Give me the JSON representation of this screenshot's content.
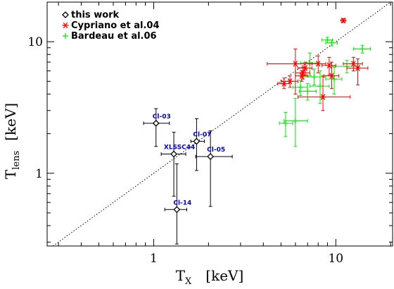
{
  "chart_data": {
    "type": "scatter",
    "title": "",
    "xlabel": "T",
    "xlabel_sub": "X",
    "xlabel_unit": "[keV]",
    "ylabel": "T",
    "ylabel_sub": "lens",
    "ylabel_unit": "[keV]",
    "x_scale": "log",
    "y_scale": "log",
    "xlim": [
      0.26,
      20.5
    ],
    "ylim": [
      0.28,
      20.0
    ],
    "x_ticks": [
      {
        "value": 1,
        "label": "1"
      },
      {
        "value": 10,
        "label": "10"
      }
    ],
    "y_ticks": [
      {
        "value": 1,
        "label": "1"
      },
      {
        "value": 10,
        "label": "10"
      }
    ],
    "grid": false,
    "legend_position": "top-left",
    "reference_line": {
      "type": "one-to-one",
      "style": "dotted"
    },
    "series": [
      {
        "name": "this work",
        "marker": "diamond",
        "color": "#000000",
        "points": [
          {
            "label": "Cl-03",
            "x": 1.03,
            "y": 2.4,
            "xerr": [
              0.88,
              1.22
            ],
            "yerr": [
              1.6,
              3.1
            ]
          },
          {
            "label": "XLSSC44",
            "x": 1.29,
            "y": 1.4,
            "xerr": [
              1.1,
              1.5
            ],
            "yerr": [
              0.67,
              2.05
            ]
          },
          {
            "label": "Cl-07",
            "x": 1.72,
            "y": 1.75,
            "xerr": [
              1.6,
              1.9
            ],
            "yerr": [
              1.05,
              2.6
            ]
          },
          {
            "label": "Cl-05",
            "x": 2.05,
            "y": 1.34,
            "xerr": [
              1.7,
              2.7
            ],
            "yerr": [
              0.56,
              2.1
            ]
          },
          {
            "label": "Cl-14",
            "x": 1.34,
            "y": 0.53,
            "xerr": [
              1.15,
              1.52
            ],
            "yerr": [
              0.29,
              1.18
            ]
          }
        ]
      },
      {
        "name": "Cypriano et al.04",
        "marker": "asterisk",
        "color": "#ff0000",
        "points": [
          {
            "x": 11.0,
            "y": 14.5,
            "xerr": [
              10.7,
              11.3
            ],
            "yerr": [
              14.0,
              15.0
            ]
          },
          {
            "x": 5.2,
            "y": 4.8,
            "xerr": [
              4.8,
              5.6
            ],
            "yerr": [
              4.4,
              5.3
            ]
          },
          {
            "x": 5.6,
            "y": 5.0,
            "xerr": [
              5.0,
              6.2
            ],
            "yerr": [
              4.5,
              5.5
            ]
          },
          {
            "x": 6.0,
            "y": 6.8,
            "xerr": [
              4.2,
              7.4
            ],
            "yerr": [
              4.0,
              8.8
            ]
          },
          {
            "x": 6.5,
            "y": 5.5,
            "xerr": [
              6.0,
              7.0
            ],
            "yerr": [
              5.0,
              6.0
            ]
          },
          {
            "x": 6.6,
            "y": 5.8,
            "xerr": [
              6.0,
              7.2
            ],
            "yerr": [
              5.2,
              6.4
            ]
          },
          {
            "x": 6.8,
            "y": 6.3,
            "xerr": [
              6.2,
              7.4
            ],
            "yerr": [
              5.6,
              7.0
            ]
          },
          {
            "x": 8.0,
            "y": 6.8,
            "xerr": [
              7.2,
              8.8
            ],
            "yerr": [
              5.8,
              7.8
            ]
          },
          {
            "x": 8.5,
            "y": 3.8,
            "xerr": [
              6.2,
              12.0
            ],
            "yerr": [
              3.0,
              5.5
            ]
          },
          {
            "x": 9.2,
            "y": 6.6,
            "xerr": [
              8.4,
              10.0
            ],
            "yerr": [
              5.6,
              7.6
            ]
          },
          {
            "x": 9.5,
            "y": 5.5,
            "xerr": [
              8.6,
              10.4
            ],
            "yerr": [
              4.4,
              7.0
            ]
          },
          {
            "x": 12.5,
            "y": 6.8,
            "xerr": [
              11.0,
              14.0
            ],
            "yerr": [
              6.0,
              7.6
            ]
          },
          {
            "x": 13.2,
            "y": 6.3,
            "xerr": [
              11.5,
              15.0
            ],
            "yerr": [
              4.7,
              7.4
            ]
          }
        ]
      },
      {
        "name": "Bardeau et al.06",
        "marker": "plus",
        "color": "#00ee00",
        "points": [
          {
            "x": 9.0,
            "y": 10.3,
            "xerr": [
              8.4,
              9.6
            ],
            "yerr": [
              9.8,
              10.8
            ]
          },
          {
            "x": 9.5,
            "y": 9.8,
            "xerr": [
              8.8,
              10.2
            ],
            "yerr": [
              9.3,
              10.3
            ]
          },
          {
            "x": 14.0,
            "y": 8.8,
            "xerr": [
              12.5,
              15.5
            ],
            "yerr": [
              8.2,
              9.4
            ]
          },
          {
            "x": 7.2,
            "y": 6.9,
            "xerr": [
              6.4,
              8.0
            ],
            "yerr": [
              5.5,
              8.2
            ]
          },
          {
            "x": 11.5,
            "y": 6.5,
            "xerr": [
              9.5,
              13.5
            ],
            "yerr": [
              5.8,
              7.2
            ]
          },
          {
            "x": 7.6,
            "y": 5.4,
            "xerr": [
              6.5,
              8.8
            ],
            "yerr": [
              4.7,
              6.2
            ]
          },
          {
            "x": 9.8,
            "y": 5.2,
            "xerr": [
              8.8,
              10.8
            ],
            "yerr": [
              4.0,
              6.4
            ]
          },
          {
            "x": 6.4,
            "y": 4.5,
            "xerr": [
              5.8,
              7.0
            ],
            "yerr": [
              3.9,
              5.1
            ]
          },
          {
            "x": 7.0,
            "y": 4.2,
            "xerr": [
              6.3,
              7.8
            ],
            "yerr": [
              3.6,
              4.8
            ]
          },
          {
            "x": 8.2,
            "y": 4.6,
            "xerr": [
              7.2,
              9.2
            ],
            "yerr": [
              3.4,
              6.0
            ]
          },
          {
            "x": 5.3,
            "y": 2.4,
            "xerr": [
              4.9,
              5.8
            ],
            "yerr": [
              1.9,
              2.9
            ]
          },
          {
            "x": 6.0,
            "y": 2.5,
            "xerr": [
              5.2,
              7.0
            ],
            "yerr": [
              1.6,
              3.7
            ]
          }
        ]
      }
    ]
  }
}
